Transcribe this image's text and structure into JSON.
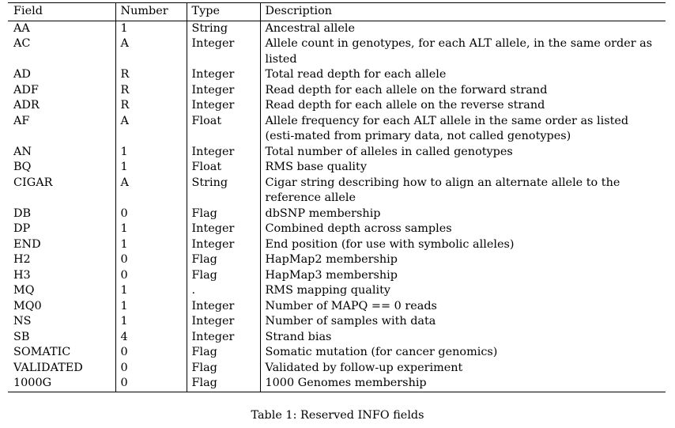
{
  "table": {
    "headers": [
      "Field",
      "Number",
      "Type",
      "Description"
    ],
    "rows": [
      [
        "AA",
        "1",
        "String",
        "Ancestral allele"
      ],
      [
        "AC",
        "A",
        "Integer",
        "Allele count in genotypes, for each ALT allele, in the same order as listed"
      ],
      [
        "AD",
        "R",
        "Integer",
        "Total read depth for each allele"
      ],
      [
        "ADF",
        "R",
        "Integer",
        "Read depth for each allele on the forward strand"
      ],
      [
        "ADR",
        "R",
        "Integer",
        "Read depth for each allele on the reverse strand"
      ],
      [
        "AF",
        "A",
        "Float",
        "Allele frequency for each ALT allele in the same order as listed (esti-mated from primary data, not called genotypes)"
      ],
      [
        "AN",
        "1",
        "Integer",
        "Total number of alleles in called genotypes"
      ],
      [
        "BQ",
        "1",
        "Float",
        "RMS base quality"
      ],
      [
        "CIGAR",
        "A",
        "String",
        "Cigar string describing how to align an alternate allele to the reference allele"
      ],
      [
        "DB",
        "0",
        "Flag",
        "dbSNP membership"
      ],
      [
        "DP",
        "1",
        "Integer",
        "Combined depth across samples"
      ],
      [
        "END",
        "1",
        "Integer",
        "End position (for use with symbolic alleles)"
      ],
      [
        "H2",
        "0",
        "Flag",
        "HapMap2 membership"
      ],
      [
        "H3",
        "0",
        "Flag",
        "HapMap3 membership"
      ],
      [
        "MQ",
        "1",
        ".",
        "RMS mapping quality"
      ],
      [
        "MQ0",
        "1",
        "Integer",
        "Number of MAPQ == 0 reads"
      ],
      [
        "NS",
        "1",
        "Integer",
        "Number of samples with data"
      ],
      [
        "SB",
        "4",
        "Integer",
        "Strand bias"
      ],
      [
        "SOMATIC",
        "0",
        "Flag",
        "Somatic mutation (for cancer genomics)"
      ],
      [
        "VALIDATED",
        "0",
        "Flag",
        "Validated by follow-up experiment"
      ],
      [
        "1000G",
        "0",
        "Flag",
        "1000 Genomes membership"
      ]
    ]
  },
  "caption": "Table 1: Reserved INFO fields"
}
